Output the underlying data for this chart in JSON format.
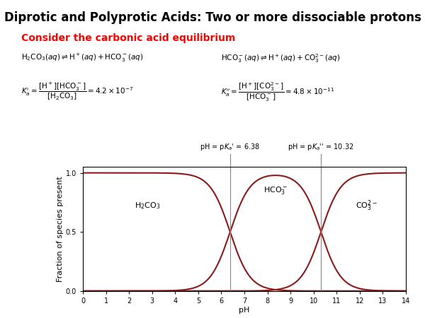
{
  "title": "Diprotic and Polyprotic Acids: Two or more dissociable protons",
  "subtitle": "Consider the carbonic acid equilibrium",
  "pKa1": 6.38,
  "pKa2": 10.32,
  "curve_color": "#8B1A1A",
  "line_color": "#888888",
  "pH_min": 0,
  "pH_max": 14,
  "ylabel": "Fraction of species present",
  "xlabel": "pH",
  "yticks": [
    0.0,
    0.5,
    1.0
  ],
  "xticks": [
    0,
    1,
    2,
    3,
    4,
    5,
    6,
    7,
    8,
    9,
    10,
    11,
    12,
    13,
    14
  ],
  "bg_color": "#ffffff",
  "title_fontsize": 12,
  "subtitle_fontsize": 10,
  "eq_fontsize": 7.5,
  "axis_label_fontsize": 8,
  "tick_fontsize": 7,
  "species_fontsize": 8,
  "vline_fontsize": 7
}
